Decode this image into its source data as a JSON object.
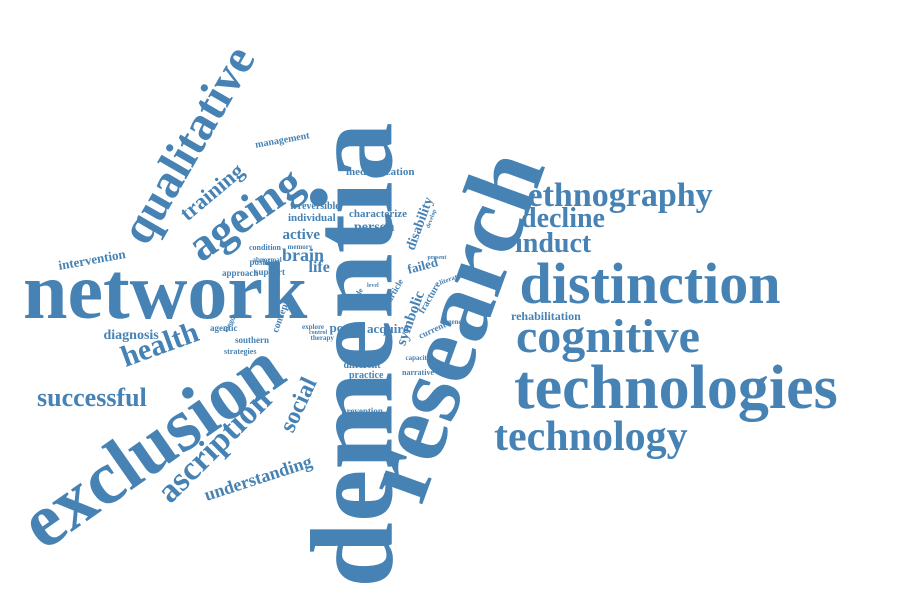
{
  "color": "#4682b4",
  "words": [
    {
      "id": "dementia",
      "text": "dementia"
    },
    {
      "id": "research",
      "text": "research"
    },
    {
      "id": "exclusion",
      "text": "exclusion"
    },
    {
      "id": "network",
      "text": "network"
    },
    {
      "id": "technologies",
      "text": "technologies"
    },
    {
      "id": "distinction",
      "text": "distinction"
    },
    {
      "id": "cognitive",
      "text": "cognitive"
    },
    {
      "id": "technology",
      "text": "technology"
    },
    {
      "id": "ethnography",
      "text": "ethnography"
    },
    {
      "id": "qualitative",
      "text": "qualitative"
    },
    {
      "id": "ageing",
      "text": "ageing"
    },
    {
      "id": "ascription",
      "text": "ascription"
    },
    {
      "id": "health",
      "text": "health"
    },
    {
      "id": "successful",
      "text": "successful"
    },
    {
      "id": "decline",
      "text": "decline"
    },
    {
      "id": "induct",
      "text": "induct"
    },
    {
      "id": "training",
      "text": "training"
    },
    {
      "id": "social",
      "text": "social"
    },
    {
      "id": "understanding",
      "text": "understanding"
    },
    {
      "id": "intervention",
      "text": "intervention"
    },
    {
      "id": "diagnosis",
      "text": "diagnosis"
    },
    {
      "id": "rehabilitation",
      "text": "rehabilitation"
    },
    {
      "id": "brain",
      "text": "brain"
    },
    {
      "id": "life",
      "text": "life"
    },
    {
      "id": "active",
      "text": "active"
    },
    {
      "id": "person",
      "text": "person"
    },
    {
      "id": "disability",
      "text": "disability"
    },
    {
      "id": "symbolic",
      "text": "symbolic"
    },
    {
      "id": "failed",
      "text": "failed"
    },
    {
      "id": "power",
      "text": "power"
    },
    {
      "id": "acquire",
      "text": "acquire"
    },
    {
      "id": "management",
      "text": "management"
    },
    {
      "id": "medicalization",
      "text": "medicalization"
    },
    {
      "id": "irreversible",
      "text": "irreversible"
    },
    {
      "id": "individual",
      "text": "individual"
    },
    {
      "id": "characterize",
      "text": "characterize"
    },
    {
      "id": "condition",
      "text": "condition"
    },
    {
      "id": "memory",
      "text": "memory"
    },
    {
      "id": "abnormal",
      "text": "abnormal"
    },
    {
      "id": "approach",
      "text": "approach"
    },
    {
      "id": "position",
      "text": "position"
    },
    {
      "id": "support",
      "text": "support"
    },
    {
      "id": "concept",
      "text": "concept"
    },
    {
      "id": "agentic",
      "text": "agentic"
    },
    {
      "id": "southern",
      "text": "southern"
    },
    {
      "id": "strategies",
      "text": "strategies"
    },
    {
      "id": "kingdom",
      "text": "kingdom"
    },
    {
      "id": "different",
      "text": "different"
    },
    {
      "id": "practice",
      "text": "practice"
    },
    {
      "id": "prevention",
      "text": "prevention"
    },
    {
      "id": "narrative",
      "text": "narrative"
    },
    {
      "id": "capacity",
      "text": "capacity"
    },
    {
      "id": "current",
      "text": "current"
    },
    {
      "id": "agency",
      "text": "agency"
    },
    {
      "id": "fracture",
      "text": "fracture"
    },
    {
      "id": "literature",
      "text": "literature"
    },
    {
      "id": "article",
      "text": "article"
    },
    {
      "id": "divide",
      "text": "divide"
    },
    {
      "id": "explore",
      "text": "explore"
    },
    {
      "id": "control",
      "text": "control"
    },
    {
      "id": "therapy",
      "text": "therapy"
    },
    {
      "id": "present",
      "text": "present"
    },
    {
      "id": "develop",
      "text": "develop"
    },
    {
      "id": "ability",
      "text": "ability"
    },
    {
      "id": "level",
      "text": "level"
    }
  ]
}
